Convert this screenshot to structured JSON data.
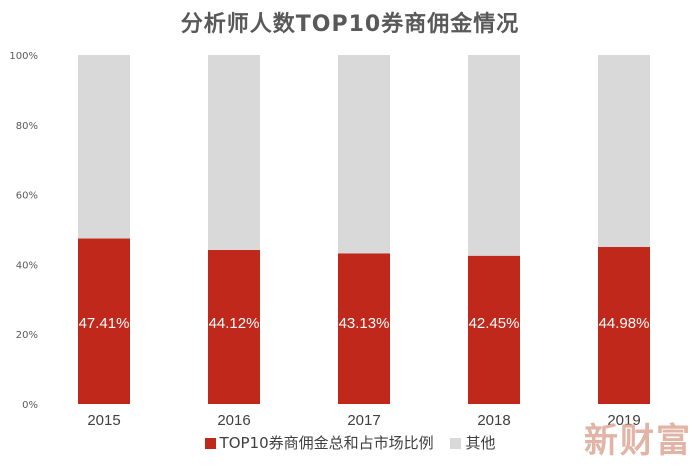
{
  "chart_data": {
    "type": "bar",
    "stacked": true,
    "title": "分析师人数TOP10券商佣金情况",
    "categories": [
      "2015",
      "2016",
      "2017",
      "2018",
      "2019"
    ],
    "series": [
      {
        "name": "TOP10券商佣金总和占市场比例",
        "color": "#c0281b",
        "values": [
          47.41,
          44.12,
          43.13,
          42.45,
          44.98
        ],
        "labels": [
          "47.41%",
          "44.12%",
          "43.13%",
          "42.45%",
          "44.98%"
        ]
      },
      {
        "name": "其他",
        "color": "#d9d9d9",
        "values": [
          52.59,
          55.88,
          56.87,
          57.55,
          55.02
        ]
      }
    ],
    "ylim": [
      0,
      100
    ],
    "yticks": [
      0,
      20,
      40,
      60,
      80,
      100
    ],
    "ytick_labels": [
      "0%",
      "20%",
      "40%",
      "60%",
      "80%",
      "100%"
    ],
    "grid": false,
    "legend_position": "bottom"
  },
  "watermark": "新财富"
}
